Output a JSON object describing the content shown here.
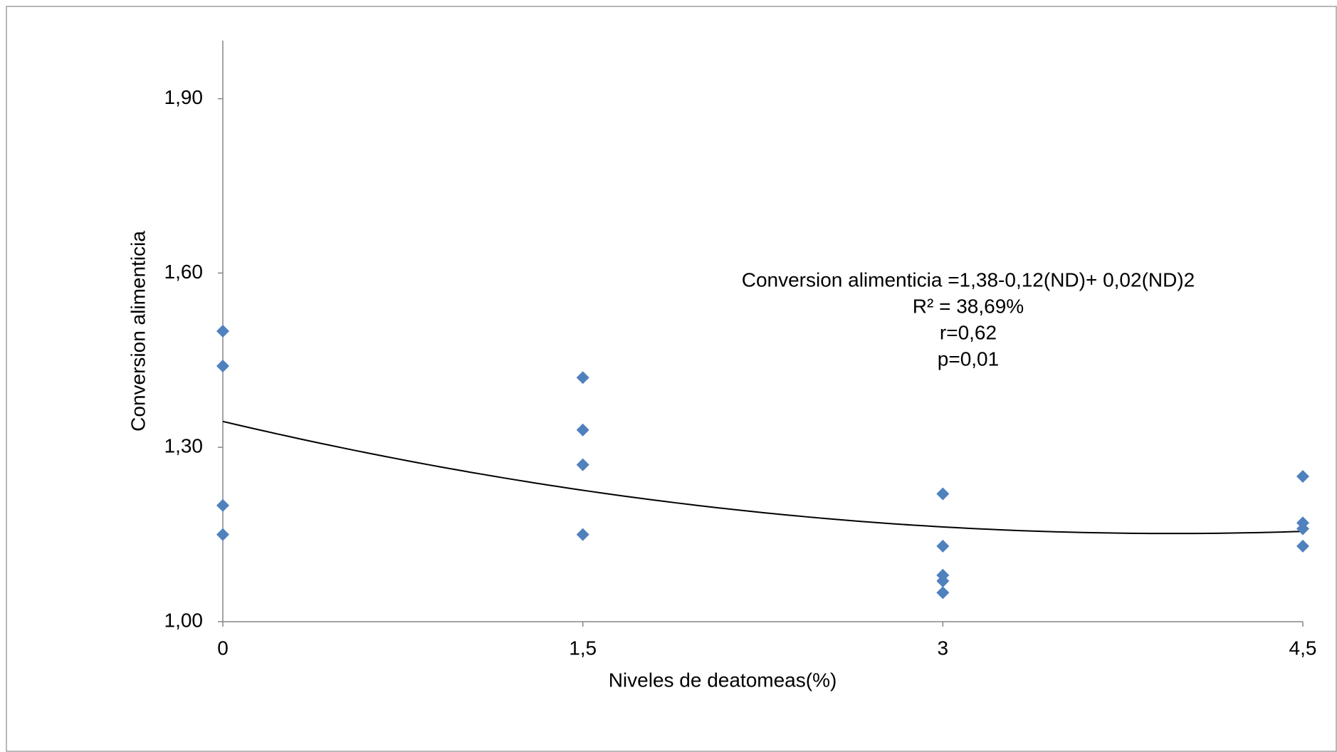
{
  "chart_data": {
    "type": "scatter",
    "x_label": "Niveles de deatomeas(%)",
    "y_label": "Conversion alimenticia",
    "annotations": [
      "Conversion alimenticia =1,38-0,12(ND)+ 0,02(ND)2",
      "R² = 38,69%",
      "r=0,62",
      "p=0,01"
    ],
    "series": [
      {
        "color": "#4f81bd",
        "x": [
          0,
          0,
          0,
          0,
          1.5,
          1.5,
          1.5,
          1.5,
          3,
          3,
          3,
          3,
          3,
          4.5,
          4.5,
          4.5,
          4.5
        ],
        "values": [
          1.5,
          1.44,
          1.2,
          1.15,
          1.42,
          1.33,
          1.27,
          1.15,
          1.22,
          1.13,
          1.08,
          1.07,
          1.05,
          1.25,
          1.17,
          1.16,
          1.13
        ]
      }
    ],
    "trendline": {
      "type": "polynomial",
      "order": 2,
      "color": "#000000"
    },
    "xlim": [
      0,
      4.5
    ],
    "xticks": [
      0,
      {
        "value": 1.5,
        "label": "1,5"
      },
      3,
      {
        "value": 4.5,
        "label": "4,5"
      }
    ],
    "ylim": [
      1,
      2
    ],
    "yticks": [
      {
        "value": 1.0,
        "label": "1,00"
      },
      {
        "value": 1.3,
        "label": "1,30"
      },
      {
        "value": 1.6,
        "label": "1,60"
      },
      {
        "value": 1.9,
        "label": "1,90"
      }
    ]
  }
}
